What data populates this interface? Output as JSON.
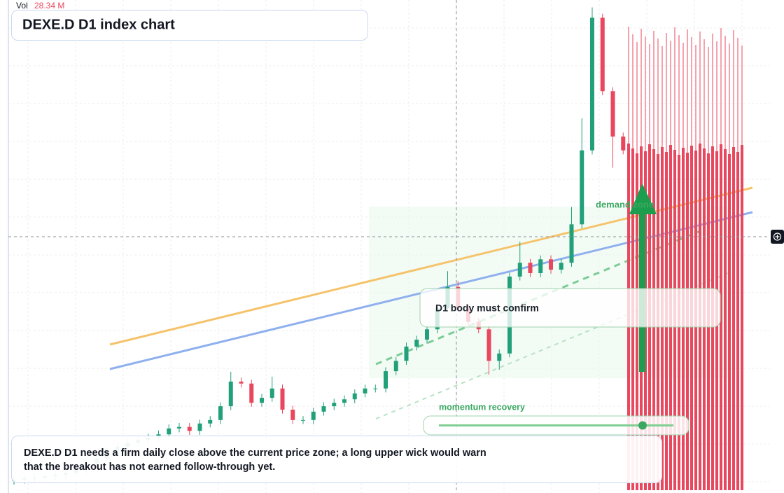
{
  "chart_data": {
    "type": "candlestick",
    "title": "DEXE.D D1 index chart",
    "volume_label": "Vol",
    "volume_text": "28.34 M",
    "ylim": [
      0,
      100
    ],
    "up_color": "#22a07a",
    "down_color": "#e8475d",
    "grid": true,
    "open": [
      2.5,
      2.7,
      3.0,
      3.1,
      3.4,
      3.7,
      4.1,
      4.8,
      6.0,
      7.0,
      8.4,
      9.4,
      10.2,
      10.8,
      11.2,
      11.9,
      13.1,
      13.4,
      12.6,
      14.1,
      14.8,
      17.6,
      22.6,
      22.2,
      18.3,
      19.3,
      21.2,
      16.9,
      14.8,
      14.8,
      16.5,
      17.6,
      18.3,
      19.0,
      20.2,
      21.2,
      21.2,
      24.7,
      26.8,
      29.7,
      31.1,
      33.2,
      37.5,
      41.8,
      37.5,
      34.7,
      33.2,
      26.8,
      28.3,
      43.9,
      46.7,
      44.6,
      47.4,
      45.3,
      46.7,
      54.5,
      69.5,
      96.4,
      81.5,
      72.3
    ],
    "high": [
      3.5,
      3.8,
      3.9,
      4.2,
      4.5,
      4.9,
      5.6,
      6.8,
      7.8,
      9.2,
      10.2,
      11.0,
      11.6,
      12.0,
      12.7,
      13.9,
      14.2,
      14.2,
      14.9,
      15.6,
      18.4,
      24.6,
      23.4,
      23.0,
      20.1,
      23.6,
      22.0,
      17.7,
      15.6,
      17.3,
      18.4,
      19.1,
      19.8,
      21.0,
      22.0,
      22.0,
      25.5,
      27.6,
      30.5,
      31.9,
      34.0,
      38.3,
      45.0,
      43.0,
      38.3,
      35.5,
      34.0,
      29.1,
      44.7,
      51.0,
      47.5,
      48.2,
      48.2,
      47.5,
      58.0,
      76.0,
      98.5,
      97.2,
      82.3,
      73.1
    ],
    "low": [
      1.7,
      1.9,
      2.2,
      2.3,
      2.6,
      2.9,
      3.3,
      4.0,
      5.2,
      6.2,
      7.6,
      8.6,
      9.4,
      10.0,
      10.4,
      11.1,
      12.3,
      11.8,
      11.8,
      13.3,
      14.0,
      16.8,
      21.4,
      17.5,
      17.5,
      18.5,
      16.1,
      14.0,
      14.0,
      14.0,
      15.7,
      16.8,
      17.5,
      18.2,
      19.4,
      20.4,
      20.4,
      23.9,
      26.0,
      28.9,
      30.3,
      32.4,
      36.7,
      36.7,
      33.9,
      32.4,
      24.0,
      25.0,
      27.5,
      43.1,
      43.8,
      43.8,
      44.5,
      44.5,
      45.9,
      53.7,
      68.7,
      80.7,
      66.0,
      68.7
    ],
    "close": [
      2.7,
      3.0,
      3.1,
      3.4,
      3.7,
      4.1,
      4.8,
      6.0,
      7.0,
      8.4,
      9.4,
      10.2,
      10.8,
      11.2,
      11.9,
      13.1,
      13.4,
      12.6,
      14.1,
      14.8,
      17.6,
      22.6,
      22.2,
      18.3,
      19.3,
      21.2,
      16.9,
      14.8,
      14.8,
      16.5,
      17.6,
      18.3,
      19.0,
      20.2,
      21.2,
      21.2,
      24.7,
      26.8,
      29.7,
      31.1,
      33.2,
      37.5,
      41.8,
      37.5,
      34.7,
      33.2,
      26.8,
      28.3,
      43.9,
      46.7,
      44.6,
      47.4,
      45.3,
      46.7,
      54.5,
      69.5,
      96.4,
      81.5,
      72.3,
      69.5
    ],
    "annotations": {
      "zone": "demand zone",
      "confirm": "D1 body must confirm",
      "momentum": "momentum recovery",
      "note": "DEXE.D D1 needs a firm daily close above the current price zone; a long upper wick would warn that the breakout has not earned follow-through yet."
    }
  }
}
